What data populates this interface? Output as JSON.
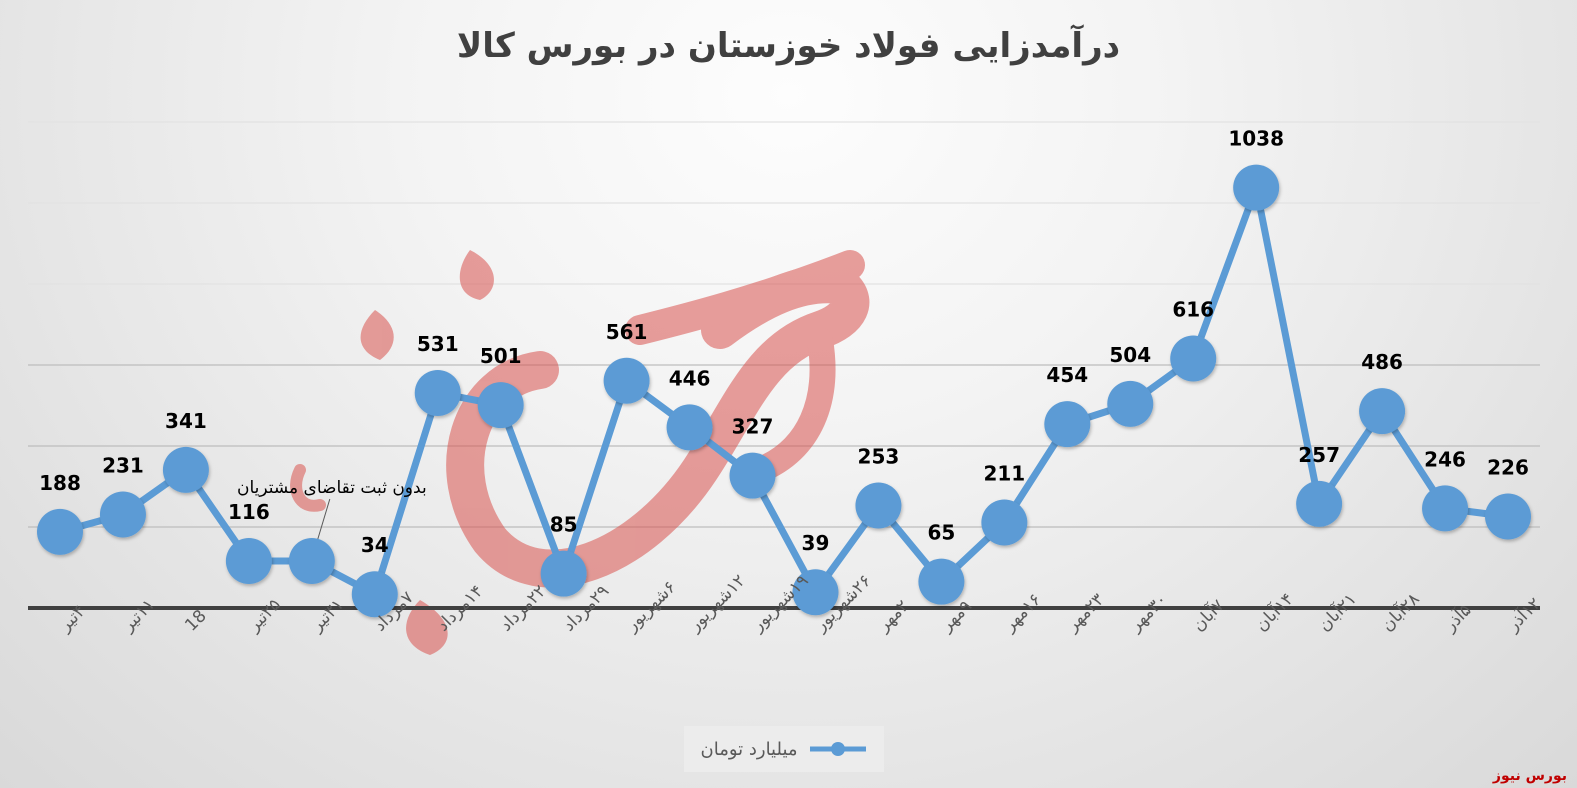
{
  "chart_data": {
    "type": "line",
    "title": "درآمدزایی فولاد خوزستان در بورس کالا",
    "categories": [
      "۴تیر",
      "۱۱تیر",
      "18",
      "۲۵تیر",
      "۳۱تیر",
      "۷مرداد",
      "۱۴مرداد",
      "۲۲مرداد",
      "۲۹مرداد",
      "۶شهریور",
      "۱۲شهریور",
      "۱۹شهریور",
      "۲۶شهریور",
      "۲مهر",
      "۹مهر",
      "۱۶مهر",
      "۲۳مهر",
      "۳۰مهر",
      "۷آبان",
      "۱۴آبان",
      "۲۱آبان",
      "۲۸آبان",
      "۵آذر",
      "۱۲آذر"
    ],
    "series": [
      {
        "name": "میلیارد تومان",
        "color": "#5b9bd5",
        "values": [
          188,
          231,
          341,
          116,
          116,
          34,
          531,
          501,
          85,
          561,
          446,
          327,
          39,
          253,
          65,
          211,
          454,
          504,
          616,
          1038,
          257,
          486,
          246,
          226
        ],
        "data_labels": [
          "188",
          "231",
          "341",
          "116",
          "",
          "34",
          "531",
          "501",
          "85",
          "561",
          "446",
          "327",
          "39",
          "253",
          "65",
          "211",
          "454",
          "504",
          "616",
          "1038",
          "257",
          "486",
          "246",
          "226"
        ]
      }
    ],
    "ylim": [
      0,
      1200
    ],
    "grid": true,
    "legend_position": "bottom",
    "annotation": "بدون ثبت تقاضای مشتریان"
  },
  "watermark_text": "بورس نیوز",
  "credit": "بورس نیوز"
}
